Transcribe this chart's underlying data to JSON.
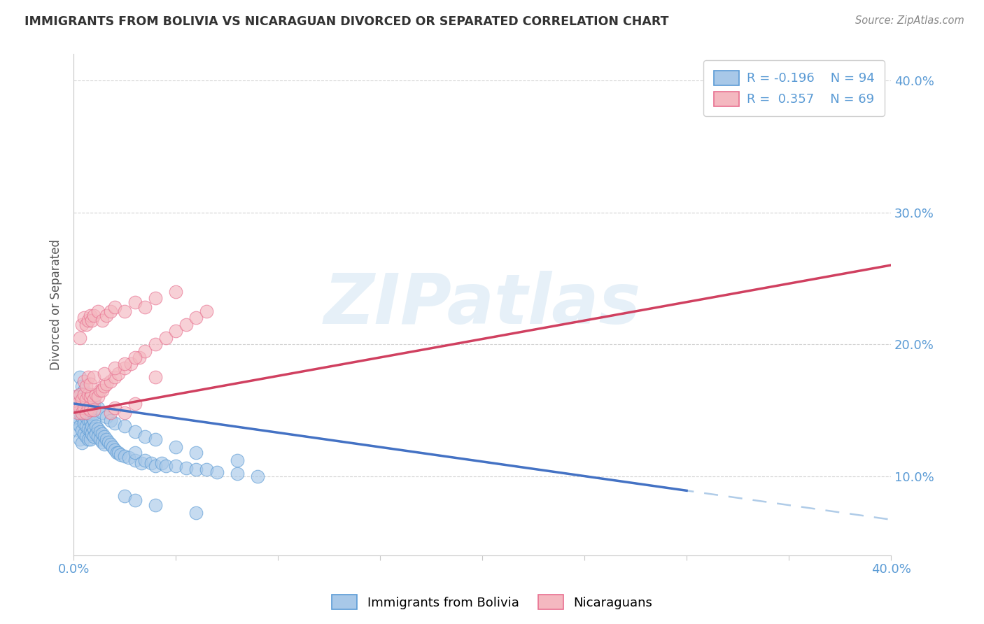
{
  "title": "IMMIGRANTS FROM BOLIVIA VS NICARAGUAN DIVORCED OR SEPARATED CORRELATION CHART",
  "source_text": "Source: ZipAtlas.com",
  "ylabel": "Divorced or Separated",
  "legend_label1": "Immigrants from Bolivia",
  "legend_label2": "Nicaraguans",
  "legend_R1": "R = -0.196",
  "legend_N1": "N = 94",
  "legend_R2": "R =  0.357",
  "legend_N2": "N = 69",
  "xlim": [
    0.0,
    0.4
  ],
  "ylim": [
    0.04,
    0.42
  ],
  "color_blue": "#a8c8e8",
  "color_blue_fill": "#a8c8e8",
  "color_blue_edge": "#5b9bd5",
  "color_blue_line": "#4472c4",
  "color_pink": "#f4b8c0",
  "color_pink_edge": "#e87090",
  "color_pink_line": "#d04060",
  "color_dashed": "#b0cce8",
  "watermark": "ZIPatlas",
  "blue_intercept": 0.155,
  "blue_slope": -0.22,
  "pink_intercept": 0.148,
  "pink_slope": 0.28,
  "blue_x": [
    0.001,
    0.001,
    0.002,
    0.002,
    0.002,
    0.003,
    0.003,
    0.003,
    0.003,
    0.004,
    0.004,
    0.004,
    0.004,
    0.005,
    0.005,
    0.005,
    0.005,
    0.006,
    0.006,
    0.006,
    0.006,
    0.007,
    0.007,
    0.007,
    0.007,
    0.008,
    0.008,
    0.008,
    0.008,
    0.009,
    0.009,
    0.009,
    0.01,
    0.01,
    0.01,
    0.011,
    0.011,
    0.012,
    0.012,
    0.013,
    0.013,
    0.014,
    0.014,
    0.015,
    0.015,
    0.016,
    0.017,
    0.018,
    0.019,
    0.02,
    0.021,
    0.022,
    0.023,
    0.025,
    0.027,
    0.03,
    0.03,
    0.033,
    0.035,
    0.038,
    0.04,
    0.043,
    0.045,
    0.05,
    0.055,
    0.06,
    0.065,
    0.07,
    0.08,
    0.09,
    0.003,
    0.004,
    0.005,
    0.006,
    0.007,
    0.008,
    0.009,
    0.01,
    0.012,
    0.014,
    0.016,
    0.018,
    0.02,
    0.025,
    0.03,
    0.035,
    0.04,
    0.05,
    0.06,
    0.08,
    0.025,
    0.03,
    0.04,
    0.06
  ],
  "blue_y": [
    0.16,
    0.14,
    0.155,
    0.145,
    0.135,
    0.162,
    0.148,
    0.138,
    0.128,
    0.155,
    0.145,
    0.135,
    0.125,
    0.155,
    0.148,
    0.14,
    0.132,
    0.152,
    0.145,
    0.138,
    0.13,
    0.15,
    0.143,
    0.136,
    0.128,
    0.148,
    0.142,
    0.135,
    0.128,
    0.145,
    0.138,
    0.132,
    0.142,
    0.136,
    0.13,
    0.138,
    0.132,
    0.136,
    0.13,
    0.134,
    0.128,
    0.132,
    0.126,
    0.13,
    0.124,
    0.128,
    0.126,
    0.124,
    0.122,
    0.12,
    0.118,
    0.118,
    0.116,
    0.115,
    0.114,
    0.112,
    0.118,
    0.11,
    0.112,
    0.11,
    0.108,
    0.11,
    0.108,
    0.108,
    0.106,
    0.105,
    0.105,
    0.103,
    0.102,
    0.1,
    0.175,
    0.168,
    0.165,
    0.16,
    0.162,
    0.158,
    0.16,
    0.155,
    0.152,
    0.148,
    0.145,
    0.142,
    0.14,
    0.138,
    0.134,
    0.13,
    0.128,
    0.122,
    0.118,
    0.112,
    0.085,
    0.082,
    0.078,
    0.072
  ],
  "pink_x": [
    0.001,
    0.002,
    0.002,
    0.003,
    0.003,
    0.004,
    0.004,
    0.005,
    0.005,
    0.006,
    0.006,
    0.007,
    0.007,
    0.008,
    0.008,
    0.009,
    0.01,
    0.01,
    0.011,
    0.012,
    0.013,
    0.014,
    0.015,
    0.016,
    0.018,
    0.02,
    0.022,
    0.025,
    0.028,
    0.032,
    0.035,
    0.04,
    0.045,
    0.05,
    0.055,
    0.06,
    0.065,
    0.003,
    0.004,
    0.005,
    0.006,
    0.007,
    0.008,
    0.009,
    0.01,
    0.012,
    0.014,
    0.016,
    0.018,
    0.02,
    0.025,
    0.03,
    0.035,
    0.04,
    0.05,
    0.005,
    0.006,
    0.007,
    0.008,
    0.01,
    0.015,
    0.02,
    0.025,
    0.03,
    0.018,
    0.02,
    0.025,
    0.03,
    0.04
  ],
  "pink_y": [
    0.16,
    0.155,
    0.148,
    0.162,
    0.152,
    0.158,
    0.148,
    0.162,
    0.152,
    0.158,
    0.148,
    0.162,
    0.152,
    0.16,
    0.15,
    0.162,
    0.158,
    0.15,
    0.162,
    0.16,
    0.165,
    0.165,
    0.168,
    0.17,
    0.172,
    0.175,
    0.178,
    0.182,
    0.185,
    0.19,
    0.195,
    0.2,
    0.205,
    0.21,
    0.215,
    0.22,
    0.225,
    0.205,
    0.215,
    0.22,
    0.215,
    0.218,
    0.222,
    0.218,
    0.222,
    0.225,
    0.218,
    0.222,
    0.225,
    0.228,
    0.225,
    0.232,
    0.228,
    0.235,
    0.24,
    0.172,
    0.168,
    0.175,
    0.17,
    0.175,
    0.178,
    0.182,
    0.185,
    0.19,
    0.148,
    0.152,
    0.148,
    0.155,
    0.175
  ]
}
